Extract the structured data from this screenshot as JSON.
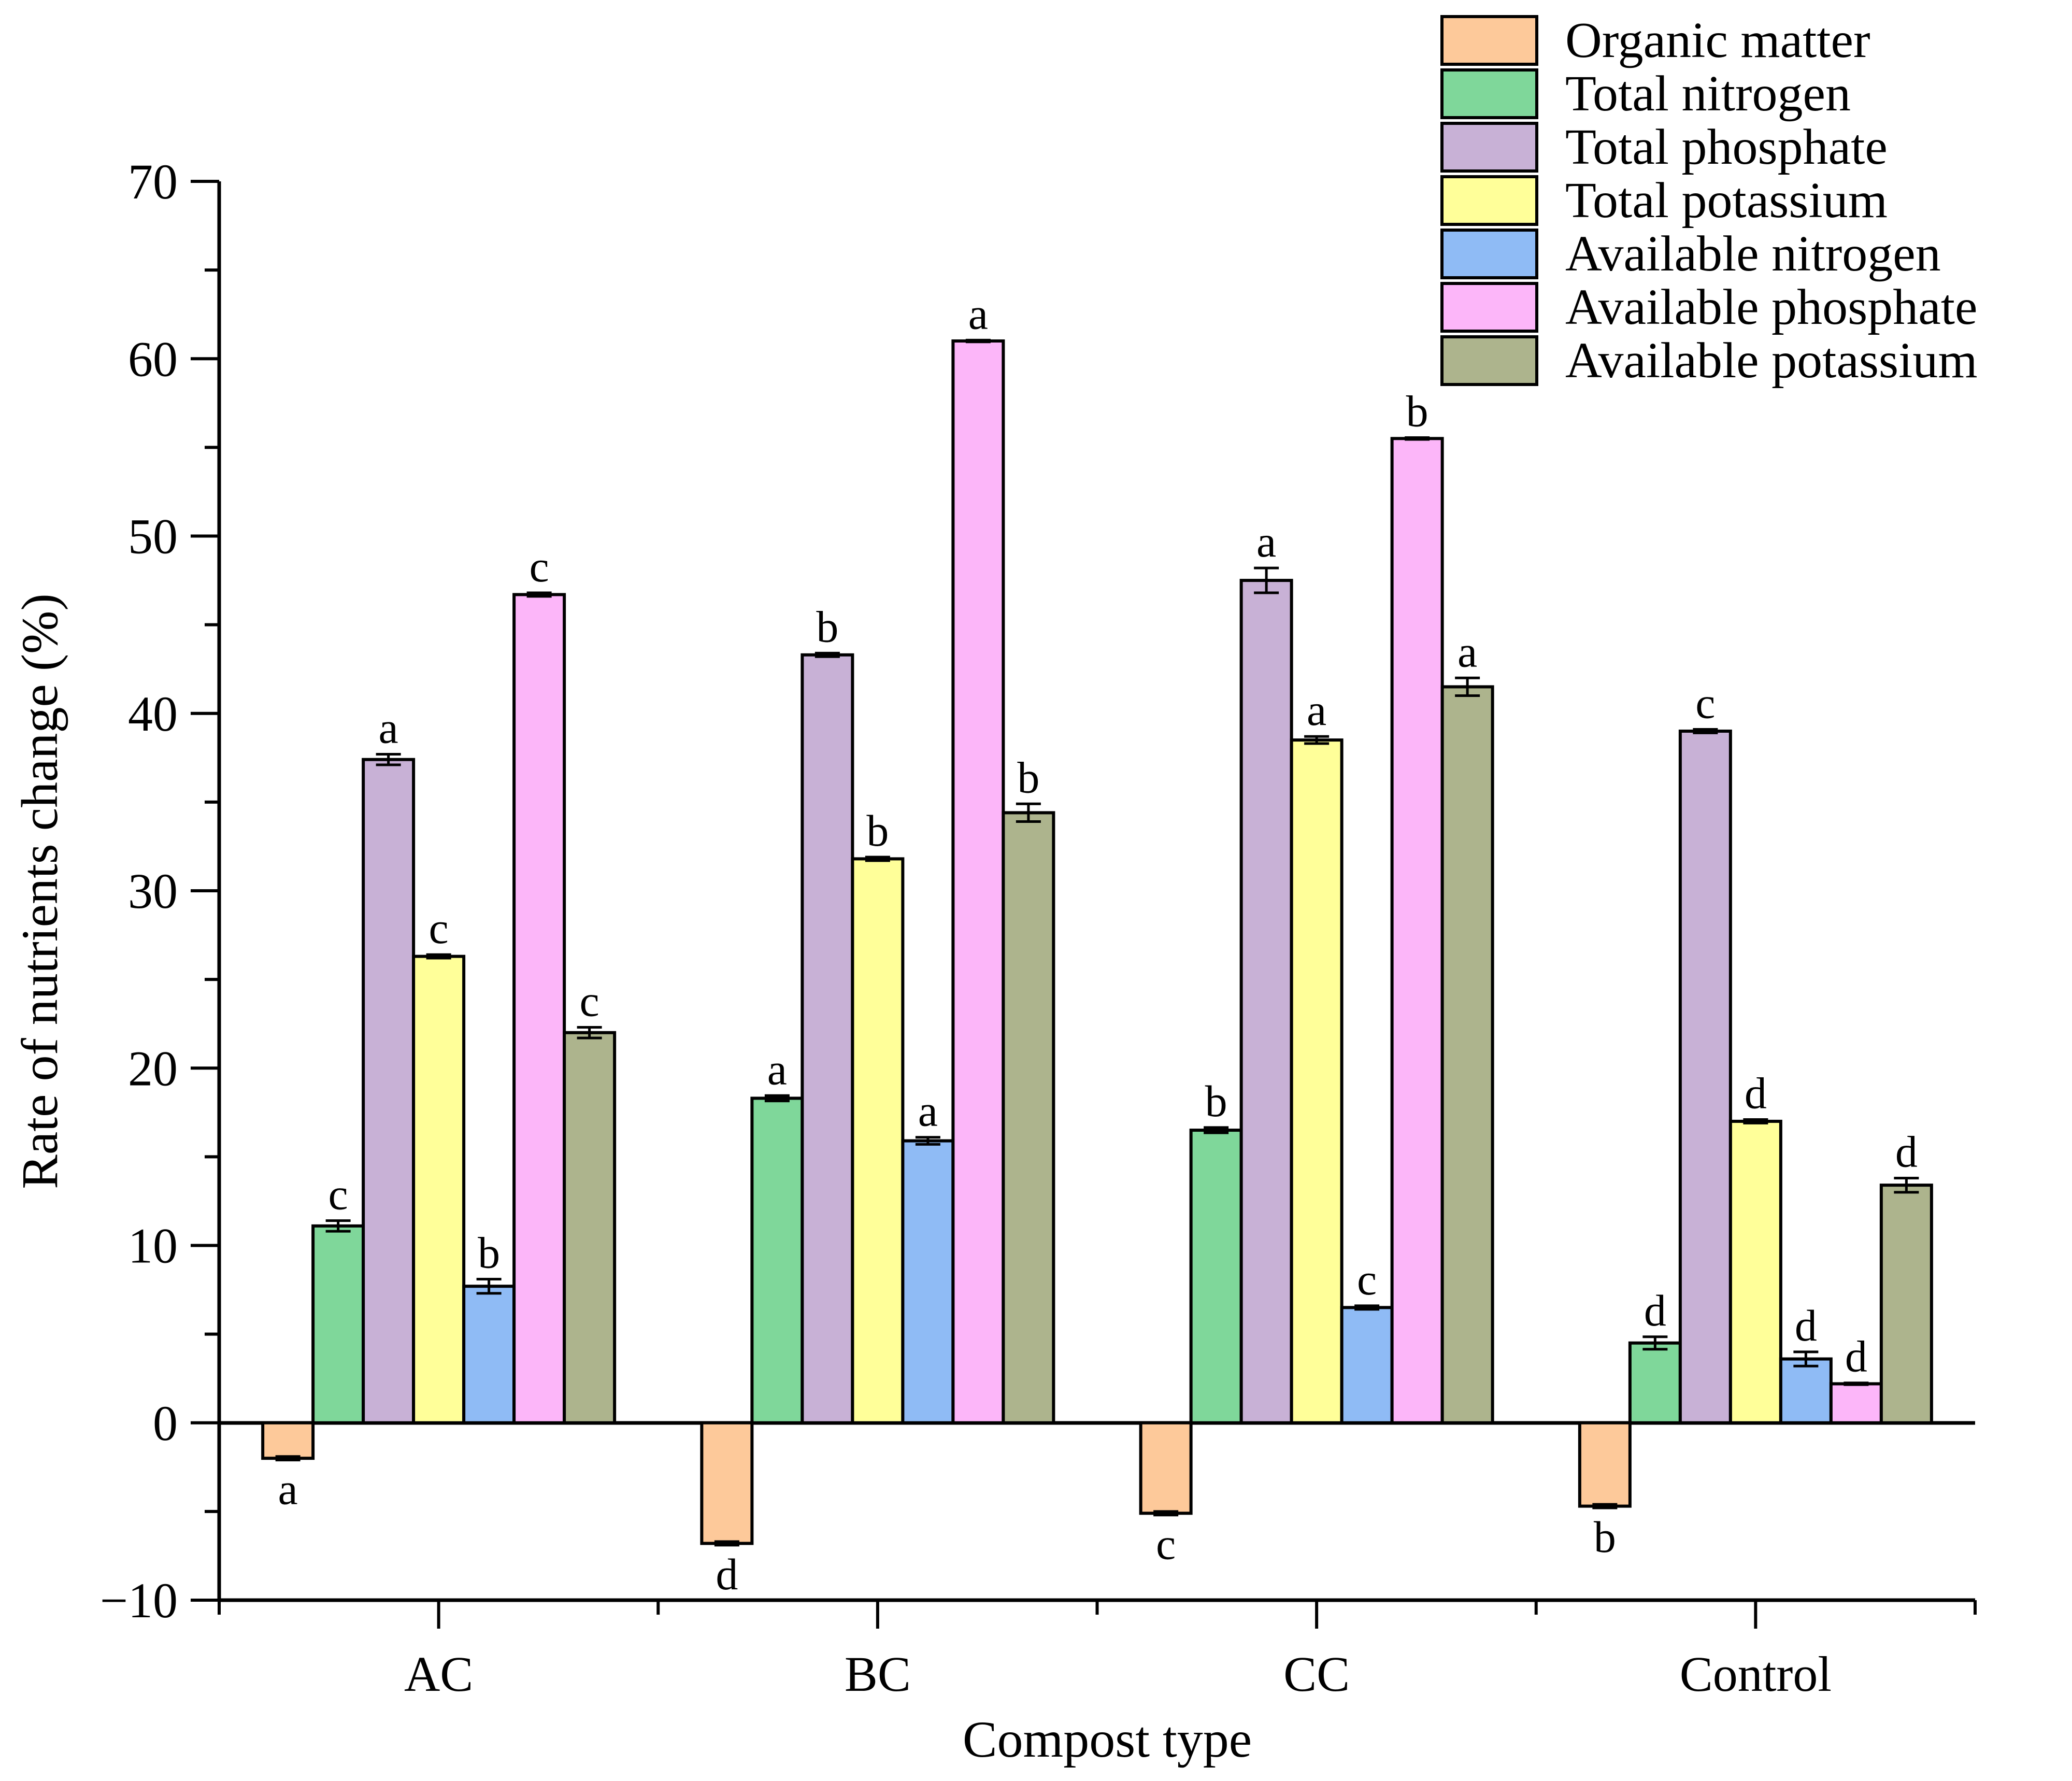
{
  "chart_data": {
    "type": "bar",
    "title": "",
    "xlabel": "Compost type",
    "ylabel": "Rate of nutrients change (%)",
    "ylim": [
      -10,
      70
    ],
    "yticks": [
      -10,
      0,
      10,
      20,
      30,
      40,
      50,
      60,
      70
    ],
    "grid": false,
    "legend_position": "top-right",
    "categories": [
      "AC",
      "BC",
      "CC",
      "Control"
    ],
    "series": [
      {
        "name": "Organic matter",
        "color": "#FDC99A",
        "values": [
          -2.0,
          -6.8,
          -5.1,
          -4.7
        ],
        "errors": [
          0.1,
          0.1,
          0.1,
          0.1
        ],
        "letters": [
          "a",
          "d",
          "c",
          "b"
        ]
      },
      {
        "name": "Total nitrogen",
        "color": "#7FD79A",
        "values": [
          11.1,
          18.3,
          16.5,
          4.5
        ],
        "errors": [
          0.3,
          0.15,
          0.15,
          0.35
        ],
        "letters": [
          "c",
          "a",
          "b",
          "d"
        ]
      },
      {
        "name": "Total phosphate",
        "color": "#C8B1D6",
        "values": [
          37.4,
          43.3,
          47.5,
          39.0
        ],
        "errors": [
          0.3,
          0.1,
          0.7,
          0.1
        ],
        "letters": [
          "a",
          "b",
          "a",
          "c"
        ]
      },
      {
        "name": "Total potassium",
        "color": "#FFFF99",
        "values": [
          26.3,
          31.8,
          38.5,
          17.0
        ],
        "errors": [
          0.1,
          0.1,
          0.2,
          0.1
        ],
        "letters": [
          "c",
          "b",
          "a",
          "d"
        ]
      },
      {
        "name": "Available nitrogen",
        "color": "#8FBBF5",
        "values": [
          7.7,
          15.9,
          6.5,
          3.6
        ],
        "errors": [
          0.4,
          0.2,
          0.1,
          0.4
        ],
        "letters": [
          "b",
          "a",
          "c",
          "d"
        ]
      },
      {
        "name": "Available phosphate",
        "color": "#FCB6F9",
        "values": [
          46.7,
          61.0,
          55.5,
          2.2
        ],
        "errors": [
          0.1,
          0.05,
          0.05,
          0.05
        ],
        "letters": [
          "c",
          "a",
          "b",
          "d"
        ]
      },
      {
        "name": "Available potassium",
        "color": "#ADB48D",
        "values": [
          22.0,
          34.4,
          41.5,
          13.4
        ],
        "errors": [
          0.3,
          0.5,
          0.5,
          0.4
        ],
        "letters": [
          "c",
          "b",
          "a",
          "d"
        ]
      }
    ]
  }
}
